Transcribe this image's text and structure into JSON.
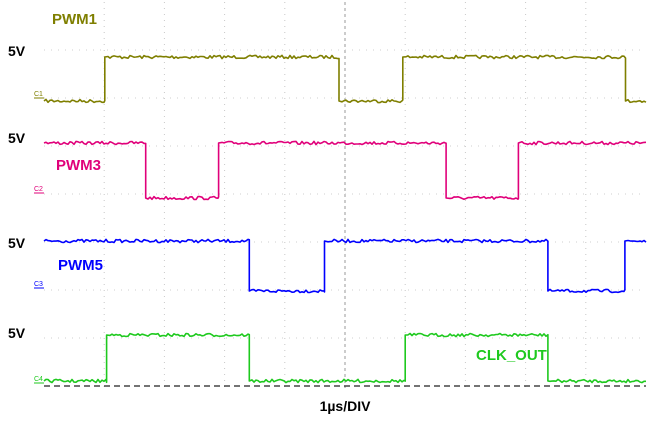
{
  "chart_data": {
    "type": "line",
    "title": "",
    "xlabel": "1µs/DIV",
    "ylabel": "",
    "x_unit": "µs",
    "x_range": [
      0,
      10
    ],
    "grid": true,
    "series": [
      {
        "name": "PWM1",
        "color": "#7f7f00",
        "level_label": "5V",
        "marker": "C1",
        "initial_state": 0,
        "transitions_us": [
          1.01,
          4.9,
          5.96,
          9.66
        ]
      },
      {
        "name": "PWM3",
        "color": "#e0007a",
        "level_label": "5V",
        "marker": "C2",
        "initial_state": 1,
        "transitions_us": [
          1.69,
          2.9,
          6.68,
          7.88
        ]
      },
      {
        "name": "PWM5",
        "color": "#0000ff",
        "level_label": "5V",
        "marker": "C3",
        "initial_state": 1,
        "transitions_us": [
          3.41,
          4.66,
          8.37,
          9.65
        ]
      },
      {
        "name": "CLK_OUT",
        "color": "#1ec91e",
        "level_label": "5V",
        "marker": "C4",
        "initial_state": 0,
        "transitions_us": [
          1.04,
          3.41,
          6.0,
          8.37
        ]
      }
    ]
  }
}
